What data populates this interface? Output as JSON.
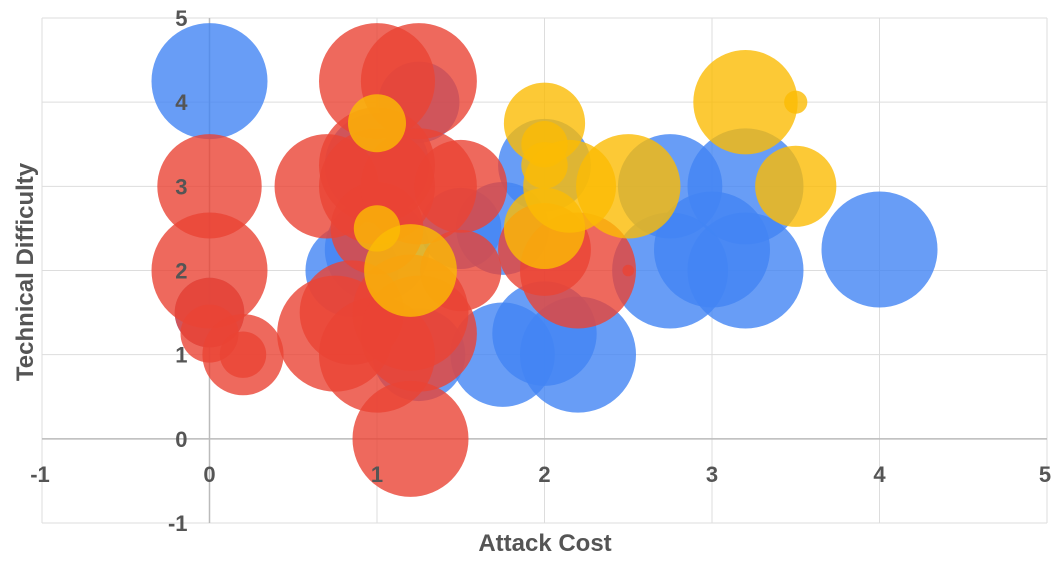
{
  "chart_data": {
    "type": "bubble",
    "title": "",
    "xlabel": "Attack Cost",
    "ylabel": "Technical Difficulty",
    "xlim": [
      -1,
      5
    ],
    "ylim": [
      -1,
      5
    ],
    "x_ticks": [
      "-1",
      "0",
      "1",
      "2",
      "3",
      "4",
      "5"
    ],
    "y_ticks": [
      "-1",
      "0",
      "1",
      "2",
      "3",
      "4",
      "5"
    ],
    "grid": true,
    "legend": "none",
    "colors": {
      "blue": "#4285f4",
      "red": "#ea4335",
      "yellow": "#fbbc04"
    },
    "series": [
      {
        "color": "blue",
        "points": [
          {
            "x": 0,
            "y": 4.25,
            "size": 1.0
          },
          {
            "x": 0,
            "y": 1.5,
            "size": 0.6
          },
          {
            "x": 0.85,
            "y": 2.0,
            "size": 0.8
          },
          {
            "x": 1.0,
            "y": 2.25,
            "size": 0.9
          },
          {
            "x": 1.0,
            "y": 3.25,
            "size": 0.9
          },
          {
            "x": 1.25,
            "y": 4.0,
            "size": 0.7
          },
          {
            "x": 1.25,
            "y": 1.0,
            "size": 0.8
          },
          {
            "x": 1.5,
            "y": 2.5,
            "size": 0.7
          },
          {
            "x": 1.75,
            "y": 1.0,
            "size": 0.9
          },
          {
            "x": 1.75,
            "y": 2.5,
            "size": 0.8
          },
          {
            "x": 2.0,
            "y": 3.25,
            "size": 0.8
          },
          {
            "x": 2.0,
            "y": 1.25,
            "size": 0.9
          },
          {
            "x": 2.2,
            "y": 1.0,
            "size": 1.0
          },
          {
            "x": 2.75,
            "y": 2.0,
            "size": 1.0
          },
          {
            "x": 2.75,
            "y": 3.0,
            "size": 0.9
          },
          {
            "x": 3.0,
            "y": 2.25,
            "size": 1.0
          },
          {
            "x": 3.2,
            "y": 2.0,
            "size": 1.0
          },
          {
            "x": 3.2,
            "y": 3.0,
            "size": 1.0
          },
          {
            "x": 4.0,
            "y": 2.25,
            "size": 1.0
          }
        ]
      },
      {
        "color": "red",
        "points": [
          {
            "x": 0,
            "y": 3.0,
            "size": 0.9
          },
          {
            "x": 0,
            "y": 2.0,
            "size": 1.0
          },
          {
            "x": 0,
            "y": 1.5,
            "size": 0.6
          },
          {
            "x": 0,
            "y": 1.25,
            "size": 0.5
          },
          {
            "x": 0.2,
            "y": 1.0,
            "size": 0.7
          },
          {
            "x": 0.2,
            "y": 1.0,
            "size": 0.4
          },
          {
            "x": 0.7,
            "y": 3.0,
            "size": 0.9
          },
          {
            "x": 0.75,
            "y": 1.25,
            "size": 1.0
          },
          {
            "x": 0.85,
            "y": 1.5,
            "size": 0.9
          },
          {
            "x": 1.0,
            "y": 4.25,
            "size": 1.0
          },
          {
            "x": 1.0,
            "y": 3.25,
            "size": 1.0
          },
          {
            "x": 1.0,
            "y": 3.0,
            "size": 1.0
          },
          {
            "x": 1.0,
            "y": 1.0,
            "size": 1.0
          },
          {
            "x": 1.0,
            "y": 2.5,
            "size": 0.8
          },
          {
            "x": 1.2,
            "y": 1.5,
            "size": 1.0
          },
          {
            "x": 1.2,
            "y": 0.0,
            "size": 1.0
          },
          {
            "x": 1.25,
            "y": 4.25,
            "size": 1.0
          },
          {
            "x": 1.25,
            "y": 3.0,
            "size": 1.0
          },
          {
            "x": 1.25,
            "y": 1.25,
            "size": 1.0
          },
          {
            "x": 1.5,
            "y": 3.0,
            "size": 0.8
          },
          {
            "x": 1.5,
            "y": 2.0,
            "size": 0.7
          },
          {
            "x": 2.0,
            "y": 2.25,
            "size": 0.8
          },
          {
            "x": 2.2,
            "y": 2.0,
            "size": 1.0
          },
          {
            "x": 2.5,
            "y": 2.0,
            "size": 0.1
          }
        ]
      },
      {
        "color": "yellow",
        "points": [
          {
            "x": 1.0,
            "y": 3.75,
            "size": 0.5
          },
          {
            "x": 1.0,
            "y": 2.5,
            "size": 0.4
          },
          {
            "x": 1.2,
            "y": 2.0,
            "size": 0.8
          },
          {
            "x": 2.0,
            "y": 3.75,
            "size": 0.7
          },
          {
            "x": 2.0,
            "y": 3.5,
            "size": 0.4
          },
          {
            "x": 2.0,
            "y": 3.25,
            "size": 0.4
          },
          {
            "x": 2.0,
            "y": 2.5,
            "size": 0.7
          },
          {
            "x": 2.15,
            "y": 3.0,
            "size": 0.8
          },
          {
            "x": 2.5,
            "y": 3.0,
            "size": 0.9
          },
          {
            "x": 3.2,
            "y": 4.0,
            "size": 0.9
          },
          {
            "x": 3.5,
            "y": 4.0,
            "size": 0.2
          },
          {
            "x": 3.5,
            "y": 3.0,
            "size": 0.7
          }
        ]
      }
    ]
  }
}
